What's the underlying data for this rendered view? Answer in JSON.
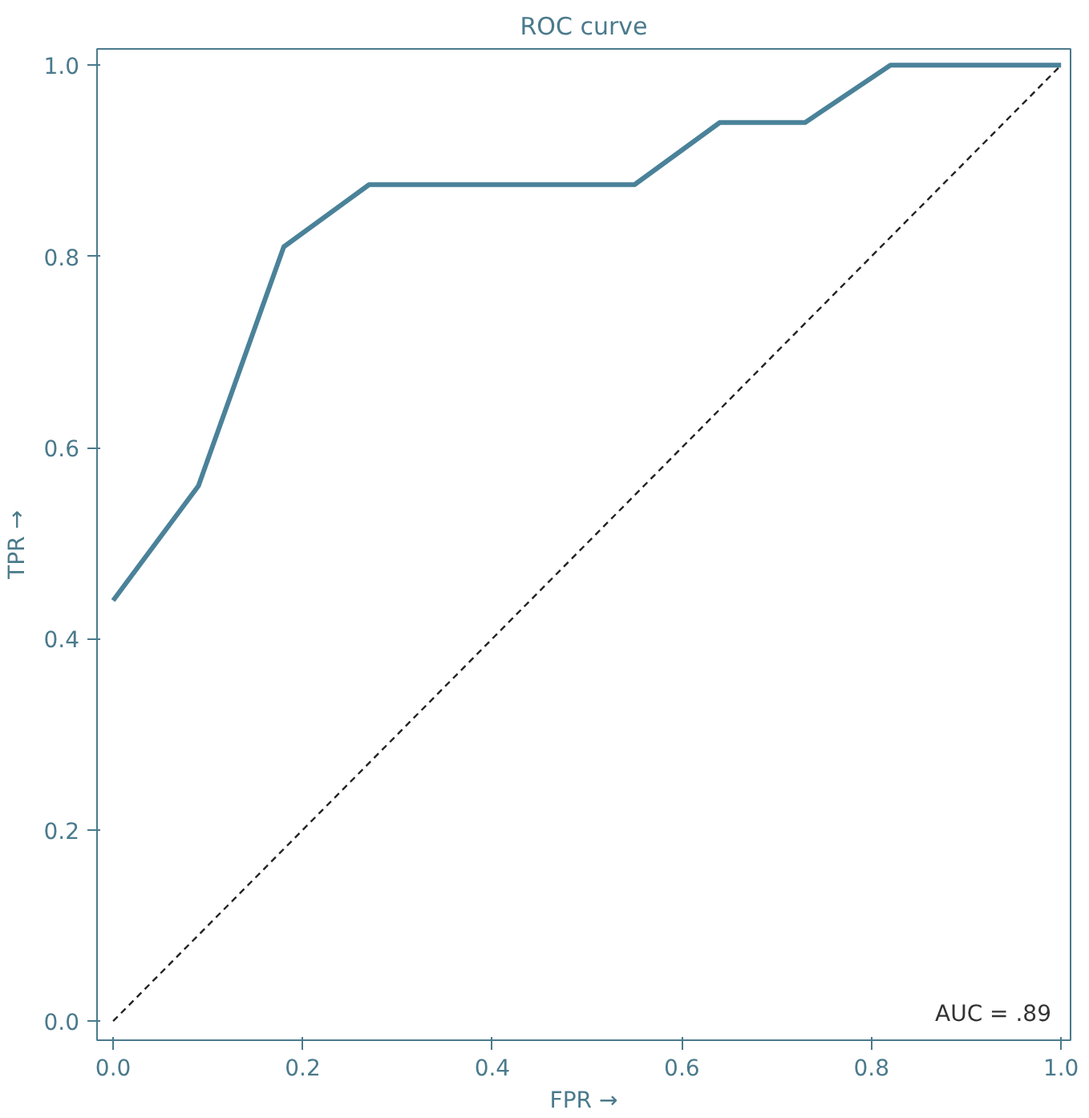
{
  "chart_data": {
    "type": "line",
    "title": "ROC curve",
    "xlabel": "FPR →",
    "ylabel": "TPR →",
    "xlim": [
      -0.017,
      1.01
    ],
    "ylim": [
      -0.02,
      1.017
    ],
    "xticks": [
      {
        "value": 0,
        "label": "0.0"
      },
      {
        "value": 0.2,
        "label": "0.2"
      },
      {
        "value": 0.4,
        "label": "0.4"
      },
      {
        "value": 0.6,
        "label": "0.6"
      },
      {
        "value": 0.8,
        "label": "0.8"
      },
      {
        "value": 1,
        "label": "1.0"
      }
    ],
    "yticks": [
      {
        "value": 0,
        "label": "0.0"
      },
      {
        "value": 0.2,
        "label": "0.2"
      },
      {
        "value": 0.4,
        "label": "0.4"
      },
      {
        "value": 0.6,
        "label": "0.6"
      },
      {
        "value": 0.8,
        "label": "0.8"
      },
      {
        "value": 1,
        "label": "1.0"
      }
    ],
    "grid": false,
    "series": [
      {
        "color": "#4a8299",
        "line_style": "solid",
        "x": [
          0,
          0.09,
          0.18,
          0.27,
          0.55,
          0.64,
          0.73,
          0.82,
          1.0
        ],
        "values": [
          0.44,
          0.56,
          0.81,
          0.875,
          0.875,
          0.94,
          0.94,
          1.0,
          1.0
        ]
      },
      {
        "color": "#222222",
        "line_style": "dashed",
        "x": [
          0,
          1
        ],
        "values": [
          0,
          1
        ]
      }
    ],
    "annotations": [
      "AUC = .89"
    ]
  }
}
